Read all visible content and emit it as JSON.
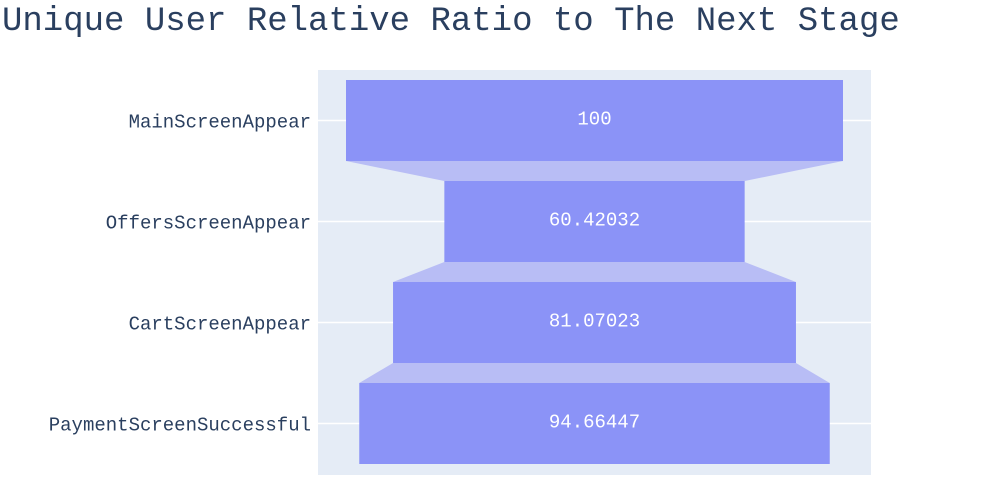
{
  "chart_data": {
    "type": "funnel",
    "title": "Unique User Relative Ratio to The Next Stage",
    "categories": [
      "MainScreenAppear",
      "OffersScreenAppear",
      "CartScreenAppear",
      "PaymentScreenSuccessful"
    ],
    "values": [
      100,
      60.42032,
      81.07023,
      94.66447
    ],
    "data_labels": [
      "100",
      "60.42032",
      "81.07023",
      "94.66447"
    ],
    "colors": {
      "bar": "#8b93f7",
      "connector": "#b8bdf5",
      "plot_background": "#e5ecf6",
      "gridline": "#ffffff",
      "text": "#2a3f5f"
    },
    "grid": true,
    "legend": "none"
  }
}
